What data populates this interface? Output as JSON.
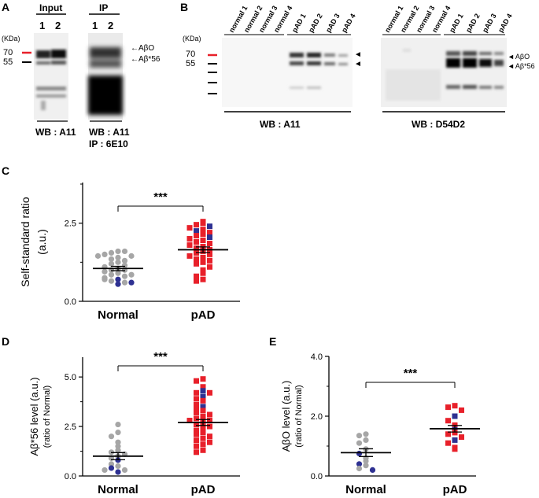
{
  "panelA": {
    "letter": "A",
    "input_label": "Input",
    "ip_label": "IP",
    "lanes": [
      "1",
      "2",
      "1",
      "2"
    ],
    "kda_label": "(KDa)",
    "markers": [
      "70",
      "55"
    ],
    "band_labels": [
      "AβO",
      "Aβ*56"
    ],
    "caption_input": "WB : A11",
    "caption_ip_line1": "WB : A11",
    "caption_ip_line2": "IP : 6E10"
  },
  "panelB": {
    "letter": "B",
    "kda_label": "(KDa)",
    "markers": [
      "70",
      "55"
    ],
    "lanes": [
      "normal 1",
      "normal 2",
      "normal 3",
      "normal 4",
      "pAD 1",
      "pAD 2",
      "pAD 3",
      "pAD 4"
    ],
    "caption_left": "WB : A11",
    "caption_right": "WB : D54D2",
    "band_labels": [
      "AβO",
      "Aβ*56"
    ]
  },
  "chart_data": [
    {
      "panel": "C",
      "type": "scatter",
      "ylabel": "Self-standard ratio (a.u.)",
      "categories": [
        "Normal",
        "pAD"
      ],
      "yticks": [
        "0.0",
        "2.5"
      ],
      "ylim": [
        0,
        3.8
      ],
      "significance": "***",
      "means": [
        1.05,
        1.65
      ],
      "sem": [
        0.07,
        0.09
      ],
      "series": [
        {
          "name": "Normal",
          "marker": "circle",
          "values": [
            1.6,
            1.55,
            1.6,
            1.5,
            1.45,
            1.45,
            1.4,
            1.35,
            1.3,
            1.25,
            1.2,
            1.15,
            1.1,
            1.05,
            1.0,
            1.0,
            0.95,
            0.9,
            0.85,
            0.8,
            0.75,
            0.7,
            0.65,
            0.6,
            0.55,
            0.85,
            0.7,
            0.6
          ]
        },
        {
          "name": "pAD",
          "marker": "square",
          "values": [
            2.55,
            2.5,
            2.45,
            2.4,
            2.35,
            2.3,
            2.25,
            2.2,
            2.15,
            2.1,
            2.05,
            2.0,
            1.95,
            1.9,
            1.85,
            1.8,
            1.75,
            1.7,
            1.65,
            1.6,
            1.55,
            1.5,
            1.45,
            1.4,
            1.35,
            1.3,
            1.25,
            1.2,
            1.1,
            1.0,
            0.9,
            0.8,
            0.7,
            0.65
          ]
        }
      ]
    },
    {
      "panel": "D",
      "type": "scatter",
      "ylabel": "Aβ*56 level (a.u.) (ratio of Normal)",
      "categories": [
        "Normal",
        "pAD"
      ],
      "yticks": [
        "0.0",
        "2.5",
        "5.0"
      ],
      "ylim": [
        0,
        6.0
      ],
      "significance": "***",
      "means": [
        1.0,
        2.7
      ],
      "sem": [
        0.18,
        0.15
      ],
      "series": [
        {
          "name": "Normal",
          "marker": "circle",
          "values": [
            2.6,
            2.2,
            2.0,
            1.7,
            1.5,
            1.3,
            1.2,
            1.1,
            1.0,
            0.9,
            0.8,
            0.6,
            0.5,
            0.4,
            0.3,
            0.3,
            0.2
          ]
        },
        {
          "name": "pAD",
          "marker": "square",
          "values": [
            4.9,
            4.8,
            4.5,
            4.3,
            4.2,
            4.2,
            4.0,
            3.9,
            3.8,
            3.6,
            3.5,
            3.4,
            3.3,
            3.2,
            3.1,
            3.0,
            2.9,
            2.8,
            2.8,
            2.7,
            2.6,
            2.5,
            2.4,
            2.3,
            2.2,
            2.1,
            2.0,
            1.9,
            1.8,
            1.7,
            1.6,
            1.5,
            1.3,
            1.2
          ]
        }
      ]
    },
    {
      "panel": "E",
      "type": "scatter",
      "ylabel": "AβO level (a.u.) (ratio of Normal)",
      "categories": [
        "Normal",
        "pAD"
      ],
      "yticks": [
        "0.0",
        "2.0",
        "4.0"
      ],
      "ylim": [
        0,
        4.0
      ],
      "significance": "***",
      "means": [
        0.78,
        1.58
      ],
      "sem": [
        0.13,
        0.11
      ],
      "series": [
        {
          "name": "Normal",
          "marker": "circle",
          "values": [
            1.4,
            1.35,
            1.2,
            1.1,
            0.9,
            0.75,
            0.6,
            0.5,
            0.4,
            0.35,
            0.25,
            0.2
          ]
        },
        {
          "name": "pAD",
          "marker": "square",
          "values": [
            2.35,
            2.3,
            2.2,
            2.0,
            1.85,
            1.7,
            1.55,
            1.45,
            1.4,
            1.3,
            1.2,
            1.1,
            0.95,
            0.9
          ]
        }
      ]
    }
  ],
  "colors": {
    "normal_grey": "#a6a6a6",
    "normal_blue": "#2e3192",
    "pad_red": "#e8202a",
    "pad_blue": "#2e3192",
    "marker_red": "#e8202a"
  }
}
